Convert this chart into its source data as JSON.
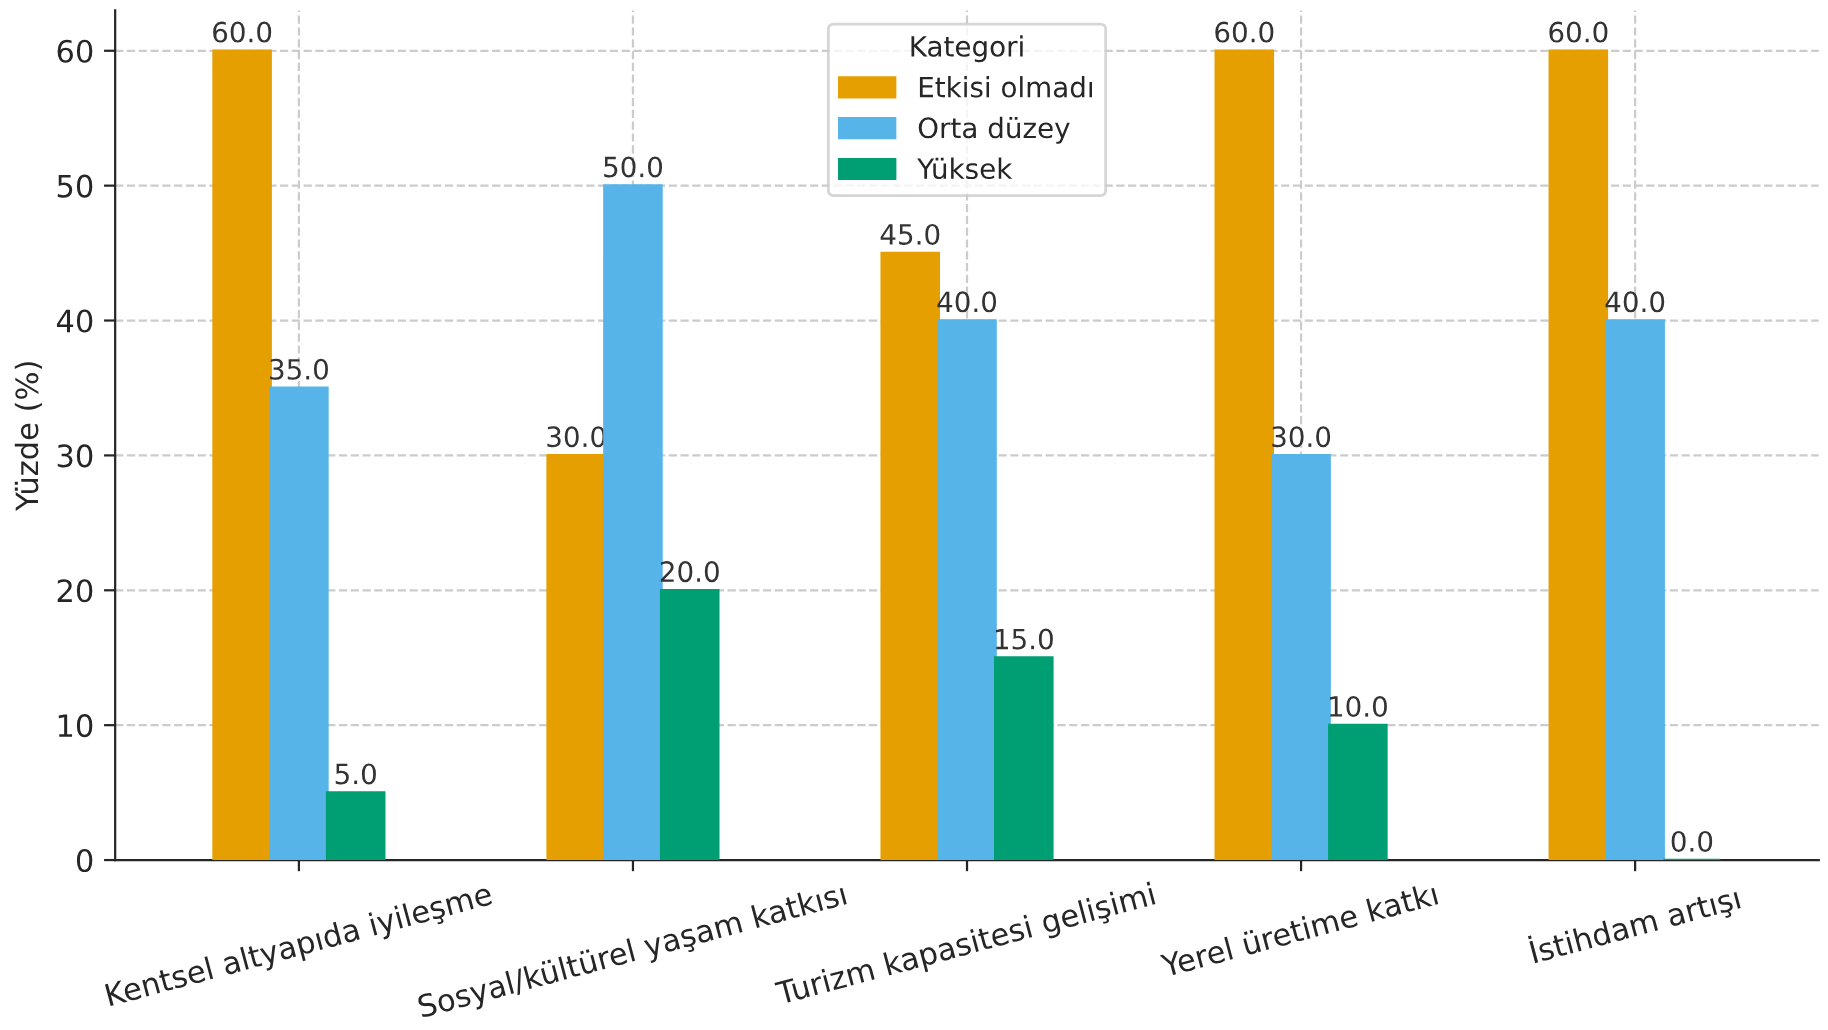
{
  "chart_data": {
    "type": "bar",
    "ylabel": "Yüzde (%)",
    "legend_title": "Kategori",
    "categories": [
      "Kentsel altyapıda iyileşme",
      "Sosyal/kültürel yaşam katkısı",
      "Turizm kapasitesi gelişimi",
      "Yerel üretime katkı",
      "İstihdam artışı"
    ],
    "series": [
      {
        "name": "Etkisi olmadı",
        "color": "#e69f00",
        "values": [
          60,
          30,
          45,
          60,
          60
        ],
        "value_labels": [
          "60.0",
          "30.0",
          "45.0",
          "60.0",
          "60.0"
        ]
      },
      {
        "name": "Orta düzey",
        "color": "#56b4e9",
        "values": [
          35,
          50,
          40,
          30,
          40
        ],
        "value_labels": [
          "35.0",
          "50.0",
          "40.0",
          "30.0",
          "40.0"
        ]
      },
      {
        "name": "Yüksek",
        "color": "#009e73",
        "values": [
          5,
          20,
          15,
          10,
          0
        ],
        "value_labels": [
          "5.0",
          "20.0",
          "15.0",
          "10.0",
          "0.0"
        ]
      }
    ],
    "ylim": [
      0,
      63
    ],
    "yticks": [
      0,
      10,
      20,
      30,
      40,
      50,
      60
    ],
    "grid": true,
    "legend": "top"
  }
}
